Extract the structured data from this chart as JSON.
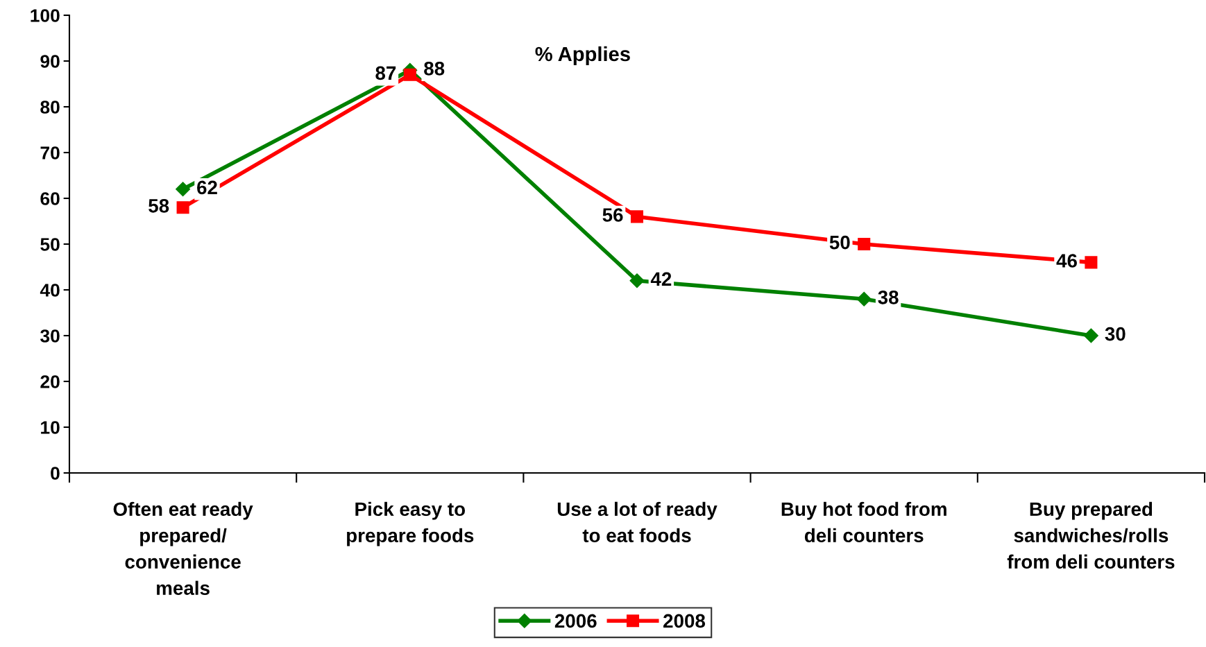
{
  "chart_data": {
    "type": "line",
    "categories": [
      "Often eat ready\nprepared/\nconvenience\nmeals",
      "Pick easy to\nprepare foods",
      "Use a lot of ready\nto eat foods",
      "Buy hot food from\ndeli counters",
      "Buy prepared\nsandwiches/rolls\nfrom deli counters"
    ],
    "series": [
      {
        "name": "2006",
        "color": "#008000",
        "marker": "diamond",
        "values": [
          62,
          88,
          42,
          38,
          30
        ]
      },
      {
        "name": "2008",
        "color": "#ff0000",
        "marker": "square",
        "values": [
          58,
          87,
          56,
          50,
          46
        ]
      }
    ],
    "ylim": [
      0,
      100
    ],
    "yticks": [
      0,
      10,
      20,
      30,
      40,
      50,
      60,
      70,
      80,
      90,
      100
    ],
    "annotations": [
      "% Applies"
    ],
    "data_labels": true,
    "grid": false,
    "legend": "bottom",
    "line_style": "solid"
  }
}
